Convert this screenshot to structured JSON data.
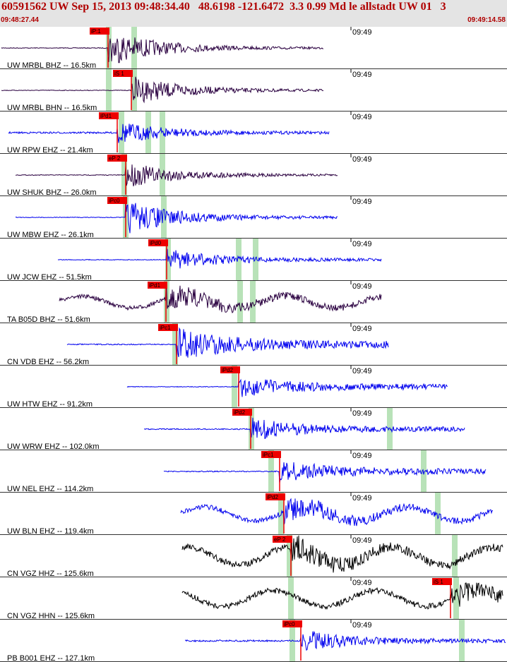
{
  "header": {
    "title": "60591562 UW Sep 15, 2013 09:48:34.40   48.6198 -121.6472  3.3 0.99 Md le allstadt UW 01   3",
    "start_time": "09:48:27.44",
    "end_time": "09:49:14.58"
  },
  "tick_label": "09:49",
  "colors": {
    "pick_box": "#ee0000",
    "window": "#b8e2b8",
    "trace_blue": "#0000ee",
    "trace_purple": "#2a0040",
    "trace_black": "#000000",
    "divider": "#333333"
  },
  "traces": [
    {
      "label": "UW MRBL BHZ -- 16.5km",
      "color": "purple",
      "picks": [
        {
          "label": "iP:1"
        }
      ]
    },
    {
      "label": "UW MRBL BHN -- 16.5km",
      "color": "purple",
      "picks": [
        {
          "label": "iS 1"
        }
      ]
    },
    {
      "label": "UW RPW EHZ -- 21.4km",
      "color": "blue",
      "picks": [
        {
          "label": "iPd1"
        }
      ]
    },
    {
      "label": "UW SHUK BHZ -- 26.0km",
      "color": "purple",
      "picks": [
        {
          "label": "eP 2"
        }
      ]
    },
    {
      "label": "UW MBW EHZ -- 26.1km",
      "color": "blue",
      "picks": [
        {
          "label": "iPc0"
        }
      ]
    },
    {
      "label": "UW JCW EHZ -- 51.5km",
      "color": "blue",
      "picks": [
        {
          "label": "iPd0"
        }
      ]
    },
    {
      "label": "TA B05D BHZ -- 51.6km",
      "color": "purple",
      "picks": [
        {
          "label": "iPd1"
        }
      ]
    },
    {
      "label": "CN VDB EHZ -- 56.2km",
      "color": "blue",
      "picks": [
        {
          "label": "iPc1"
        }
      ]
    },
    {
      "label": "UW HTW EHZ -- 91.2km",
      "color": "blue",
      "picks": [
        {
          "label": "iPd2"
        }
      ]
    },
    {
      "label": "UW WRW EHZ -- 102.0km",
      "color": "blue",
      "picks": [
        {
          "label": "iPd2"
        }
      ]
    },
    {
      "label": "UW NEL EHZ -- 114.2km",
      "color": "blue",
      "picks": [
        {
          "label": "iPc1"
        }
      ]
    },
    {
      "label": "UW BLN EHZ -- 119.4km",
      "color": "blue",
      "picks": [
        {
          "label": "iPd2"
        }
      ]
    },
    {
      "label": "CN VGZ HHZ -- 125.6km",
      "color": "black",
      "picks": [
        {
          "label": "eP 2"
        }
      ]
    },
    {
      "label": "CN VGZ HHN -- 125.6km",
      "color": "black",
      "picks": [
        {
          "label": "iS 1"
        }
      ]
    },
    {
      "label": "PB B001 EHZ -- 127.1km",
      "color": "blue",
      "picks": [
        {
          "label": "iPc0"
        }
      ]
    }
  ]
}
